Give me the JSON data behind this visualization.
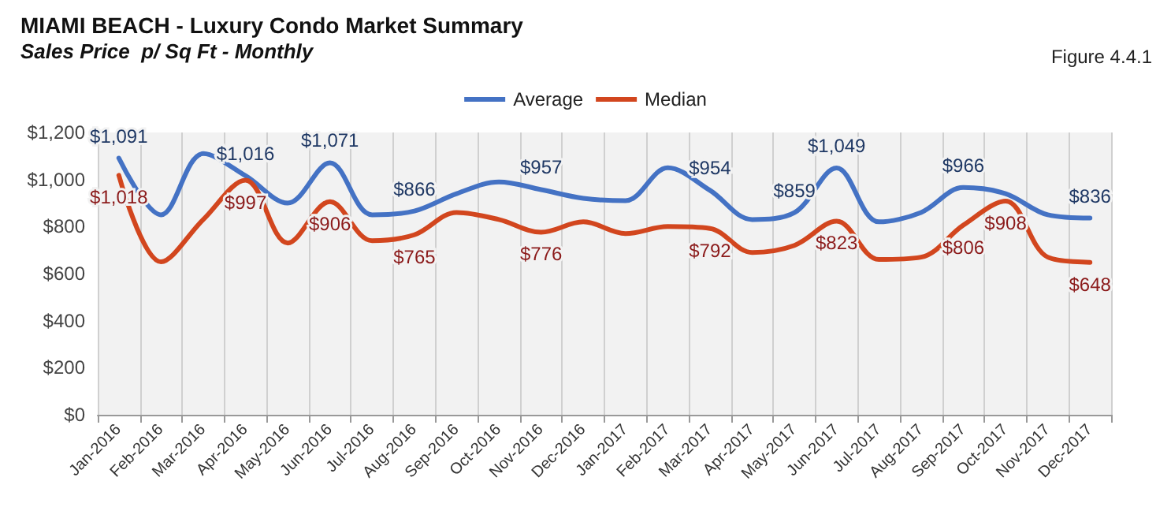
{
  "chart_data": {
    "type": "line",
    "title": "MIAMI BEACH - Luxury Condo Market Summary",
    "subtitle": "Sales Price  p/ Sq Ft - Monthly",
    "annotations": [
      "Figure 4.4.1"
    ],
    "categories": [
      "Jan-2016",
      "Feb-2016",
      "Mar-2016",
      "Apr-2016",
      "May-2016",
      "Jun-2016",
      "Jul-2016",
      "Aug-2016",
      "Sep-2016",
      "Oct-2016",
      "Nov-2016",
      "Dec-2016",
      "Jan-2017",
      "Feb-2017",
      "Mar-2017",
      "Apr-2017",
      "May-2017",
      "Jun-2017",
      "Jul-2017",
      "Aug-2017",
      "Sep-2017",
      "Oct-2017",
      "Nov-2017",
      "Dec-2017"
    ],
    "series": [
      {
        "name": "Average",
        "color": "#4472c4",
        "values": [
          1091,
          850,
          1110,
          1016,
          900,
          1071,
          850,
          866,
          940,
          990,
          957,
          920,
          910,
          1050,
          954,
          830,
          859,
          1049,
          820,
          860,
          966,
          940,
          850,
          836
        ],
        "value_labels": [
          "$1,091",
          null,
          null,
          "$1,016",
          null,
          "$1,071",
          null,
          "$866",
          null,
          null,
          "$957",
          null,
          null,
          null,
          "$954",
          null,
          "$859",
          "$1,049",
          null,
          null,
          "$966",
          null,
          null,
          "$836"
        ]
      },
      {
        "name": "Median",
        "color": "#d2461e",
        "values": [
          1018,
          650,
          830,
          997,
          730,
          906,
          740,
          765,
          860,
          830,
          776,
          820,
          770,
          800,
          792,
          690,
          720,
          823,
          660,
          670,
          806,
          908,
          670,
          648
        ],
        "value_labels": [
          "$1,018",
          null,
          null,
          "$997",
          null,
          "$906",
          null,
          "$765",
          null,
          null,
          "$776",
          null,
          null,
          null,
          "$792",
          null,
          null,
          "$823",
          null,
          null,
          "$806",
          "$908",
          null,
          "$648"
        ]
      }
    ],
    "ylim": [
      0,
      1200
    ],
    "yticks": [
      {
        "value": 0,
        "label": "$0"
      },
      {
        "value": 200,
        "label": "$200"
      },
      {
        "value": 400,
        "label": "$400"
      },
      {
        "value": 600,
        "label": "$600"
      },
      {
        "value": 800,
        "label": "$800"
      },
      {
        "value": 1000,
        "label": "$1,000"
      },
      {
        "value": 1200,
        "label": "$1,200"
      }
    ],
    "grid": "x",
    "legend": "top",
    "marker": "none",
    "line_style": "solid"
  }
}
